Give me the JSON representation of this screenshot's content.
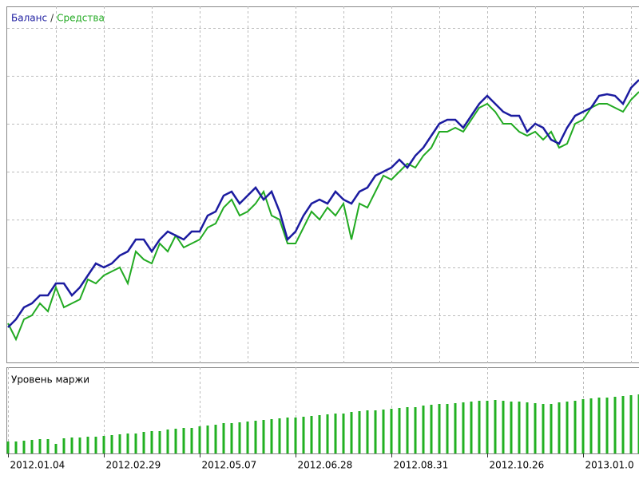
{
  "chart_data": [
    {
      "type": "line",
      "legend_separator": "/",
      "x": [
        0,
        1,
        2,
        3,
        4,
        5,
        6,
        7,
        8,
        9,
        10,
        11,
        12,
        13,
        14,
        15,
        16,
        17,
        18,
        19,
        20,
        21,
        22,
        23,
        24,
        25,
        26,
        27,
        28,
        29,
        30,
        31,
        32,
        33,
        34,
        35,
        36,
        37,
        38,
        39,
        40,
        41,
        42,
        43,
        44,
        45,
        46,
        47,
        48,
        49,
        50,
        51,
        52,
        53,
        54,
        55,
        56,
        57,
        58,
        59,
        60,
        61,
        62,
        63,
        64,
        65,
        66,
        67,
        68,
        69,
        70,
        71,
        72,
        73,
        74,
        75,
        76,
        77,
        78,
        79
      ],
      "series": [
        {
          "name": "Баланс",
          "color": "#1c1ca0",
          "values": [
            45,
            55,
            70,
            75,
            85,
            85,
            100,
            100,
            85,
            95,
            110,
            125,
            120,
            125,
            135,
            140,
            155,
            155,
            140,
            155,
            165,
            160,
            155,
            165,
            165,
            185,
            190,
            210,
            215,
            200,
            210,
            220,
            205,
            215,
            190,
            155,
            165,
            185,
            200,
            205,
            200,
            215,
            205,
            200,
            215,
            220,
            235,
            240,
            245,
            255,
            245,
            260,
            270,
            285,
            300,
            305,
            305,
            295,
            310,
            325,
            335,
            325,
            315,
            310,
            310,
            290,
            300,
            295,
            280,
            275,
            295,
            310,
            315,
            320,
            335,
            337,
            335,
            325,
            345,
            355
          ]
        },
        {
          "name": "Средства",
          "color": "#22aa22",
          "values": [
            50,
            30,
            55,
            60,
            75,
            65,
            95,
            70,
            75,
            80,
            105,
            100,
            110,
            115,
            120,
            100,
            140,
            130,
            125,
            150,
            140,
            160,
            145,
            150,
            155,
            170,
            175,
            195,
            205,
            185,
            190,
            200,
            215,
            185,
            180,
            150,
            150,
            170,
            190,
            180,
            195,
            185,
            200,
            155,
            200,
            195,
            215,
            235,
            230,
            240,
            250,
            245,
            260,
            270,
            290,
            290,
            295,
            290,
            305,
            320,
            325,
            315,
            300,
            300,
            290,
            285,
            290,
            280,
            290,
            270,
            275,
            300,
            305,
            320,
            325,
            325,
            320,
            315,
            330,
            340
          ]
        }
      ],
      "xlim": [
        0,
        79
      ],
      "xticks": [
        6,
        12,
        18,
        24,
        30,
        36,
        42,
        48,
        54,
        60,
        66,
        72,
        78
      ],
      "ylim": [
        0,
        447
      ],
      "yticks": [
        60,
        120,
        180,
        240,
        300,
        360,
        420
      ],
      "grid": true
    },
    {
      "type": "bar",
      "title": "Уровень маржи",
      "color": "#22b022",
      "x": [
        0,
        1,
        2,
        3,
        4,
        5,
        6,
        7,
        8,
        9,
        10,
        11,
        12,
        13,
        14,
        15,
        16,
        17,
        18,
        19,
        20,
        21,
        22,
        23,
        24,
        25,
        26,
        27,
        28,
        29,
        30,
        31,
        32,
        33,
        34,
        35,
        36,
        37,
        38,
        39,
        40,
        41,
        42,
        43,
        44,
        45,
        46,
        47,
        48,
        49,
        50,
        51,
        52,
        53,
        54,
        55,
        56,
        57,
        58,
        59,
        60,
        61,
        62,
        63,
        64,
        65,
        66,
        67,
        68,
        69,
        70,
        71,
        72,
        73,
        74,
        75,
        76,
        77,
        78,
        79
      ],
      "values": [
        15,
        15,
        16,
        17,
        18,
        18,
        12,
        19,
        20,
        20,
        21,
        21,
        22,
        23,
        24,
        25,
        25,
        27,
        28,
        28,
        30,
        31,
        32,
        32,
        34,
        35,
        36,
        38,
        38,
        39,
        40,
        41,
        42,
        43,
        44,
        45,
        45,
        46,
        47,
        48,
        49,
        50,
        50,
        52,
        53,
        54,
        54,
        55,
        56,
        57,
        58,
        58,
        60,
        61,
        62,
        62,
        63,
        64,
        65,
        66,
        66,
        67,
        66,
        65,
        65,
        64,
        63,
        62,
        62,
        64,
        65,
        66,
        68,
        69,
        70,
        70,
        71,
        72,
        73,
        74
      ],
      "xlim": [
        0,
        79
      ],
      "xticks": [
        {
          "value": 0,
          "label": "2012.01.04"
        },
        {
          "value": 12,
          "label": "2012.02.29"
        },
        {
          "value": 24,
          "label": "2012.05.07"
        },
        {
          "value": 36,
          "label": "2012.06.28"
        },
        {
          "value": 48,
          "label": "2012.08.31"
        },
        {
          "value": 60,
          "label": "2012.10.26"
        },
        {
          "value": 72,
          "label": "2013.01.0"
        }
      ],
      "ylim": [
        0,
        108
      ]
    }
  ]
}
